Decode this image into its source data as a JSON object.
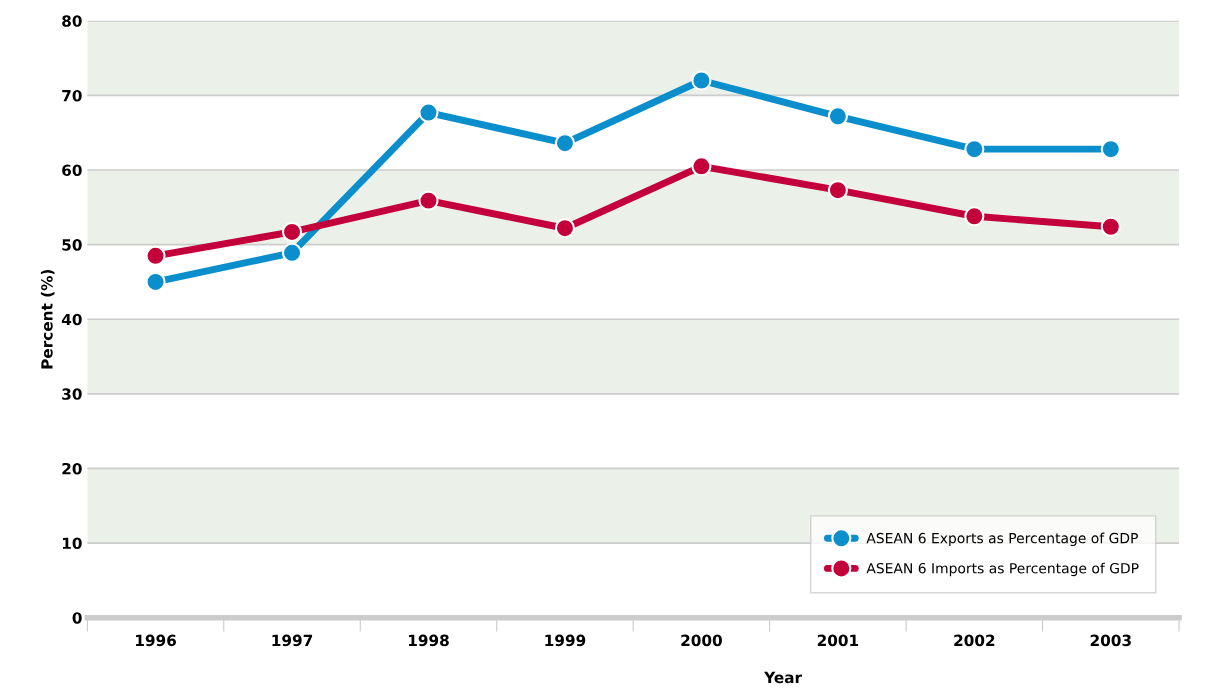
{
  "chart_data": {
    "type": "line",
    "xlabel": "Year",
    "ylabel": "Percent (%)",
    "categories": [
      "1996",
      "1997",
      "1998",
      "1999",
      "2000",
      "2001",
      "2002",
      "2003"
    ],
    "series": [
      {
        "name": "ASEAN 6 Exports as Percentage of GDP",
        "color": "#0a8fcc",
        "values": [
          45.0,
          48.9,
          67.7,
          63.6,
          72.0,
          67.2,
          62.8,
          62.8
        ]
      },
      {
        "name": "ASEAN 6 Imports as Percentage of GDP",
        "color": "#c4003a",
        "values": [
          48.5,
          51.7,
          55.9,
          52.2,
          60.5,
          57.3,
          53.8,
          52.4
        ]
      }
    ],
    "ylim": [
      0,
      80
    ],
    "yticks": [
      0,
      10,
      20,
      30,
      40,
      50,
      60,
      70,
      80
    ],
    "grid": "y",
    "legend": "bottom right",
    "marker": "circle",
    "line_style": "solid",
    "bands": [
      {
        "axis": "y",
        "from": 70,
        "to": 80,
        "color": "#ebf0e8"
      },
      {
        "axis": "y",
        "from": 50,
        "to": 60,
        "color": "#ebf0e8"
      },
      {
        "axis": "y",
        "from": 30,
        "to": 40,
        "color": "#ebf0e8"
      },
      {
        "axis": "y",
        "from": 10,
        "to": 20,
        "color": "#ebf0e8"
      }
    ]
  }
}
